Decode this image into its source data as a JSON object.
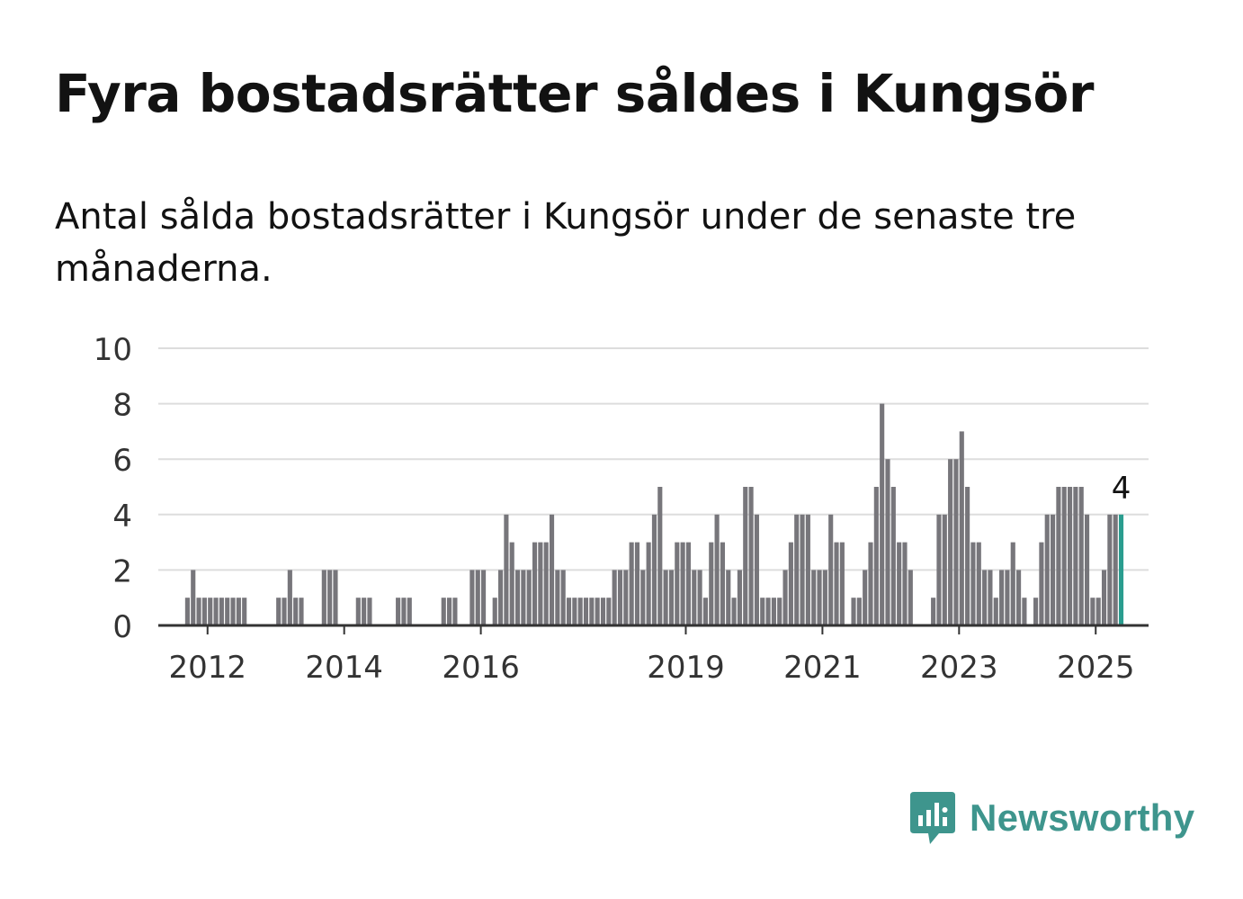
{
  "title": "Fyra bostadsrätter såldes i Kungsör",
  "subtitle": "Antal sålda bostadsrätter i Kungsör under de senaste tre månaderna.",
  "brand": {
    "name": "Newsworthy",
    "color": "#3e958d",
    "icon": "newsworthy-logo-icon"
  },
  "colors": {
    "bar": "#77767b",
    "highlight": "#2a9d8f",
    "grid": "#dddddd",
    "axis": "#333333",
    "text": "#333333"
  },
  "chart_data": {
    "type": "bar",
    "ylim": [
      0,
      10
    ],
    "y_ticks": [
      "0",
      "2",
      "4",
      "6",
      "8",
      "10"
    ],
    "x_ticks": [
      {
        "label": "2012",
        "month_index": 12
      },
      {
        "label": "2014",
        "month_index": 36
      },
      {
        "label": "2016",
        "month_index": 60
      },
      {
        "label": "2019",
        "month_index": 96
      },
      {
        "label": "2021",
        "month_index": 120
      },
      {
        "label": "2023",
        "month_index": 144
      },
      {
        "label": "2025",
        "month_index": 168
      }
    ],
    "grid": true,
    "start": "2011-01",
    "values": [
      0,
      0,
      0,
      0,
      0,
      0,
      0,
      0,
      1,
      2,
      1,
      1,
      1,
      1,
      1,
      1,
      1,
      1,
      1,
      0,
      0,
      0,
      0,
      0,
      1,
      1,
      2,
      1,
      1,
      0,
      0,
      0,
      2,
      2,
      2,
      0,
      0,
      0,
      1,
      1,
      1,
      0,
      0,
      0,
      0,
      1,
      1,
      1,
      0,
      0,
      0,
      0,
      0,
      1,
      1,
      1,
      0,
      0,
      2,
      2,
      2,
      0,
      1,
      2,
      4,
      3,
      2,
      2,
      2,
      3,
      3,
      3,
      4,
      2,
      2,
      1,
      1,
      1,
      1,
      1,
      1,
      1,
      1,
      2,
      2,
      2,
      3,
      3,
      2,
      3,
      4,
      5,
      2,
      2,
      3,
      3,
      3,
      2,
      2,
      1,
      3,
      4,
      3,
      2,
      1,
      2,
      5,
      5,
      4,
      1,
      1,
      1,
      1,
      2,
      3,
      4,
      4,
      4,
      2,
      2,
      2,
      4,
      3,
      3,
      0,
      1,
      1,
      2,
      3,
      5,
      8,
      6,
      5,
      3,
      3,
      2,
      0,
      0,
      0,
      1,
      4,
      4,
      6,
      6,
      7,
      5,
      3,
      3,
      2,
      2,
      1,
      2,
      2,
      3,
      2,
      1,
      0,
      1,
      3,
      4,
      4,
      5,
      5,
      5,
      5,
      5,
      4,
      1,
      1,
      2,
      4,
      4,
      4
    ],
    "highlight_label": "4"
  }
}
